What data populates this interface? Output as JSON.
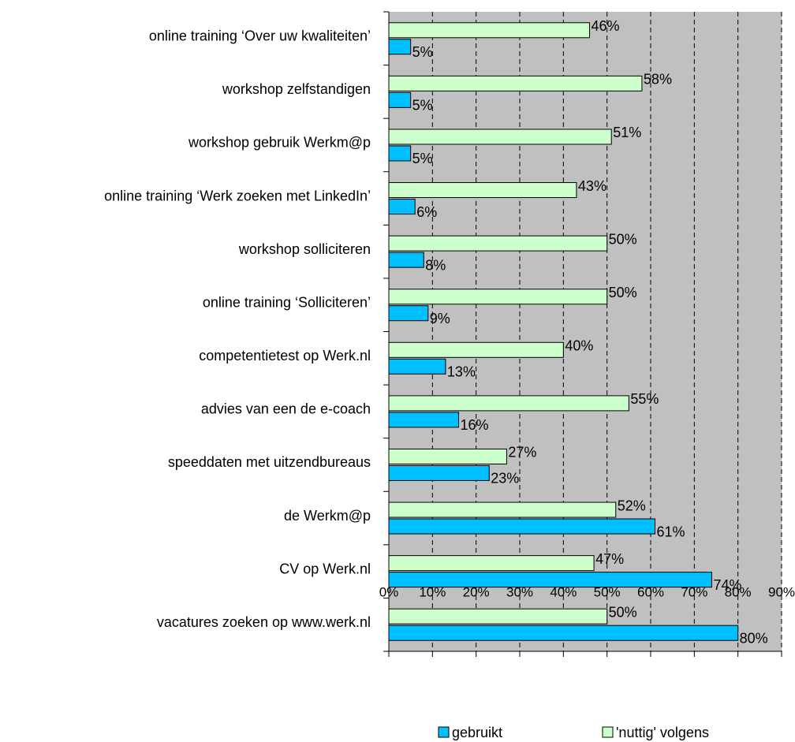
{
  "chart_data": {
    "type": "barh",
    "categories": [
      "online training ‘Over uw kwaliteiten’",
      "workshop zelfstandigen",
      "workshop gebruik Werkm@p",
      "online training ‘Werk zoeken met LinkedIn’",
      "workshop solliciteren",
      "online training ‘Solliciteren’",
      "competentietest op Werk.nl",
      "advies van een de e-coach",
      "speeddaten met uitzendbureaus",
      "de Werkm@p",
      "CV op Werk.nl",
      "vacatures zoeken op www.werk.nl"
    ],
    "series": [
      {
        "name": "gebruikt",
        "color": "#00bfff",
        "values": [
          5,
          5,
          5,
          6,
          8,
          9,
          13,
          16,
          23,
          61,
          74,
          80
        ],
        "value_labels": [
          "5%",
          "5%",
          "5%",
          "6%",
          "8%",
          "9%",
          "13%",
          "16%",
          "23%",
          "61%",
          "74%",
          "80%"
        ]
      },
      {
        "name": "'nuttig' volgens",
        "color": "#ccffcc",
        "values": [
          46,
          58,
          51,
          43,
          50,
          50,
          40,
          55,
          27,
          52,
          47,
          50
        ],
        "value_labels": [
          "46%",
          "58%",
          "51%",
          "43%",
          "50%",
          "50%",
          "40%",
          "55%",
          "27%",
          "52%",
          "47%",
          "50%"
        ]
      }
    ],
    "xlim": [
      0,
      90
    ],
    "xticks": [
      {
        "value": 0,
        "label": "0%"
      },
      {
        "value": 10,
        "label": "10%"
      },
      {
        "value": 20,
        "label": "20%"
      },
      {
        "value": 30,
        "label": "30%"
      },
      {
        "value": 40,
        "label": "40%"
      },
      {
        "value": 50,
        "label": "50%"
      },
      {
        "value": 60,
        "label": "60%"
      },
      {
        "value": 70,
        "label": "70%"
      },
      {
        "value": 80,
        "label": "80%"
      },
      {
        "value": 90,
        "label": "90%"
      }
    ],
    "grid": true,
    "plot_background": "#c0c0c0",
    "legend": "bottom"
  }
}
